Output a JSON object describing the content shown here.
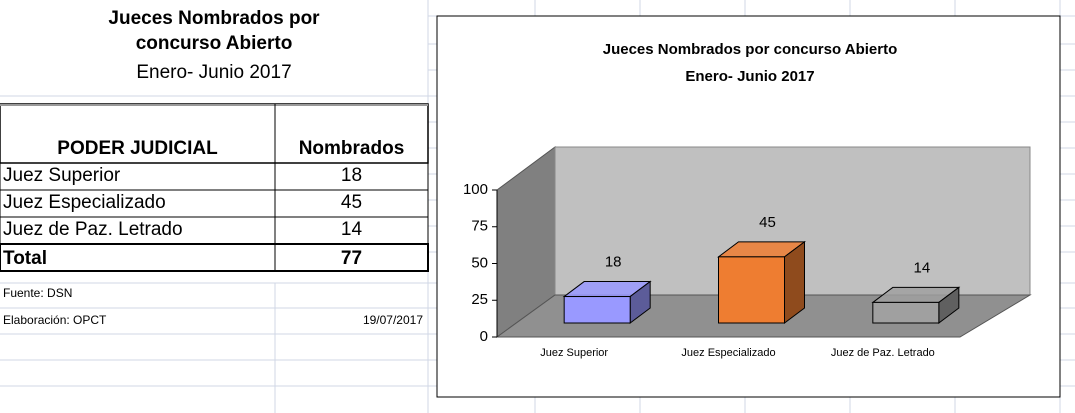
{
  "table": {
    "title": "Jueces Nombrados por concurso Abierto",
    "subtitle": "Enero- Junio 2017",
    "columns": [
      "PODER JUDICIAL",
      "Nombrados"
    ],
    "rows": [
      [
        "Juez Superior",
        18
      ],
      [
        "Juez Especializado",
        45
      ],
      [
        "Juez de Paz. Letrado",
        14
      ]
    ],
    "total": [
      "Total",
      77
    ],
    "source": "Fuente: DSN",
    "prepared": "Elaboración: OPCT",
    "date": "19/07/2017"
  },
  "chart_data": {
    "type": "bar3d",
    "title": "Jueces Nombrados por concurso Abierto",
    "subtitle": "Enero- Junio 2017",
    "categories": [
      "Juez Superior",
      "Juez Especializado",
      "Juez de Paz. Letrado"
    ],
    "values": [
      18,
      45,
      14
    ],
    "colors": [
      "#9999ff",
      "#ee7d31",
      "#a0a0a0"
    ],
    "ylim": [
      0,
      100
    ],
    "yticks": [
      0,
      25,
      50,
      75,
      100
    ]
  }
}
